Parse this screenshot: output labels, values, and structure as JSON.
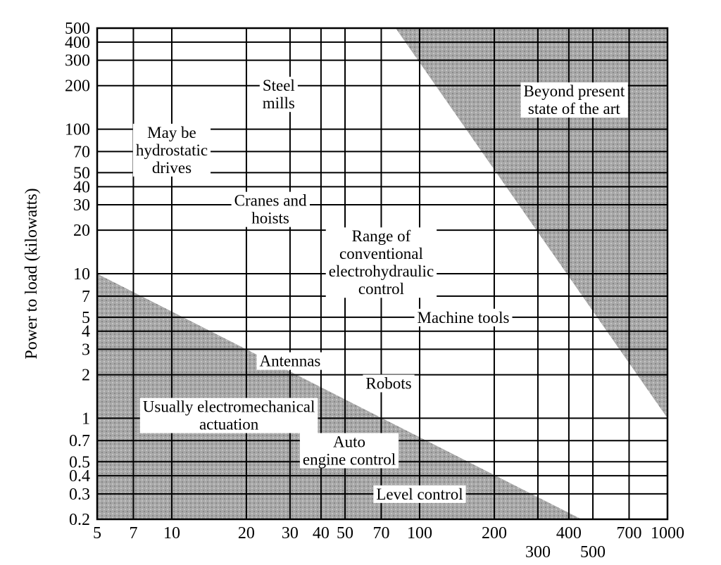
{
  "chart_data": {
    "type": "region",
    "xscale": "log",
    "yscale": "log",
    "xlim": [
      5,
      1000
    ],
    "ylim": [
      0.2,
      500
    ],
    "grid": true,
    "xlabel": "",
    "ylabel": "Power to load (kilowatts)",
    "x_ticks": [
      5,
      7,
      10,
      20,
      30,
      40,
      50,
      70,
      100,
      200,
      300,
      400,
      500,
      700,
      1000
    ],
    "x_tick_labels": [
      "5",
      "7",
      "10",
      "20",
      "30",
      "40",
      "50",
      "70",
      "100",
      "200",
      "300",
      "400",
      "500",
      "700",
      "1000"
    ],
    "y_ticks": [
      0.2,
      0.3,
      0.4,
      0.5,
      0.7,
      1,
      2,
      3,
      4,
      5,
      7,
      10,
      20,
      30,
      40,
      50,
      70,
      100,
      200,
      300,
      400,
      500
    ],
    "y_tick_labels": [
      "0.2",
      "0.3",
      "0.4",
      "0.5",
      "0.7",
      "1",
      "2",
      "3",
      "4",
      "5",
      "7",
      "10",
      "20",
      "30",
      "40",
      "50",
      "70",
      "100",
      "200",
      "300",
      "400",
      "500"
    ],
    "shaded_regions": [
      {
        "name": "upper",
        "points": [
          [
            80,
            500
          ],
          [
            1000,
            500
          ],
          [
            1000,
            1
          ]
        ]
      },
      {
        "name": "lower",
        "points": [
          [
            5,
            10
          ],
          [
            5,
            0.2
          ],
          [
            450,
            0.2
          ]
        ]
      }
    ],
    "region_labels": [
      {
        "lines": [
          "Beyond present",
          "state of the art"
        ],
        "x": 420,
        "y": 160
      },
      {
        "lines": [
          "Steel",
          "mills"
        ],
        "x": 27,
        "y": 175
      },
      {
        "lines": [
          "May be",
          "hydrostatic",
          "drives"
        ],
        "x": 10,
        "y": 72
      },
      {
        "lines": [
          "Cranes and",
          "hoists"
        ],
        "x": 25,
        "y": 28
      },
      {
        "lines": [
          "Range of",
          "conventional",
          "electrohydraulic",
          "control"
        ],
        "x": 70,
        "y": 12
      },
      {
        "lines": [
          "Machine tools"
        ],
        "x": 150,
        "y": 5
      },
      {
        "lines": [
          "Antennas"
        ],
        "x": 30,
        "y": 2.5
      },
      {
        "lines": [
          "Robots"
        ],
        "x": 75,
        "y": 1.75
      },
      {
        "lines": [
          "Usually electromechanical",
          "actuation"
        ],
        "x": 17,
        "y": 1.05
      },
      {
        "lines": [
          "Auto",
          "engine control"
        ],
        "x": 52,
        "y": 0.6
      },
      {
        "lines": [
          "Level control"
        ],
        "x": 100,
        "y": 0.3
      }
    ]
  }
}
